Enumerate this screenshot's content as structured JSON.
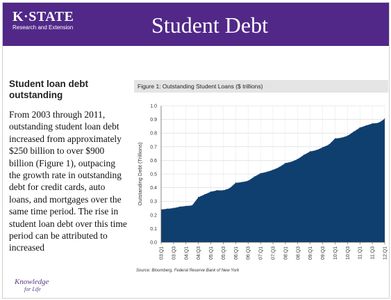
{
  "header": {
    "logo_main": "K·STATE",
    "logo_sub": "Research and Extension",
    "title": "Student Debt"
  },
  "sidebar": {
    "subhead": "Student loan debt outstanding",
    "body": "From 2003 through 2011, outstanding student loan debt increased from approximately $250 billion to over $900 billion (Figure 1), outpacing the growth rate in outstanding debt for credit cards, auto loans, and mortgages over the same time period. The rise in student loan debt over this time period can be attributed to increased",
    "footer_logo_line1": "Knowledge",
    "footer_logo_line2": "for Life"
  },
  "figure": {
    "caption": "Figure 1: Outstanding Student Loans ($ trillions)",
    "source": "Source: Bloomberg, Federal Reserve Bank of New York"
  },
  "chart_data": {
    "type": "area",
    "title": "",
    "xlabel": "",
    "ylabel": "Outstanding Debt (Trillions)",
    "ylim": [
      0,
      1.0
    ],
    "yticks": [
      "0.0",
      "0.1",
      "0.2",
      "0.3",
      "0.4",
      "0.5",
      "0.6",
      "0.7",
      "0.8",
      "0.9",
      "1.0"
    ],
    "xticks": [
      "03:Q1",
      "03:Q3",
      "04:Q1",
      "04:Q3",
      "05:Q1",
      "05:Q3",
      "06:Q1",
      "06:Q3",
      "07:Q1",
      "07:Q3",
      "08:Q1",
      "08:Q3",
      "09:Q1",
      "09:Q3",
      "10:Q1",
      "10:Q3",
      "11:Q1",
      "11:Q3",
      "12:Q1"
    ],
    "grid": true,
    "color": "#0f3f6e",
    "x": [
      "03:Q1",
      "03:Q2",
      "03:Q3",
      "03:Q4",
      "04:Q1",
      "04:Q2",
      "04:Q3",
      "04:Q4",
      "05:Q1",
      "05:Q2",
      "05:Q3",
      "05:Q4",
      "06:Q1",
      "06:Q2",
      "06:Q3",
      "06:Q4",
      "07:Q1",
      "07:Q2",
      "07:Q3",
      "07:Q4",
      "08:Q1",
      "08:Q2",
      "08:Q3",
      "08:Q4",
      "09:Q1",
      "09:Q2",
      "09:Q3",
      "09:Q4",
      "10:Q1",
      "10:Q2",
      "10:Q3",
      "10:Q4",
      "11:Q1",
      "11:Q2",
      "11:Q3",
      "11:Q4",
      "12:Q1"
    ],
    "values": [
      0.24,
      0.245,
      0.25,
      0.26,
      0.265,
      0.27,
      0.33,
      0.35,
      0.37,
      0.38,
      0.38,
      0.395,
      0.435,
      0.44,
      0.45,
      0.48,
      0.505,
      0.515,
      0.53,
      0.55,
      0.58,
      0.59,
      0.61,
      0.64,
      0.665,
      0.675,
      0.695,
      0.715,
      0.76,
      0.765,
      0.78,
      0.81,
      0.84,
      0.855,
      0.87,
      0.875,
      0.905
    ]
  }
}
